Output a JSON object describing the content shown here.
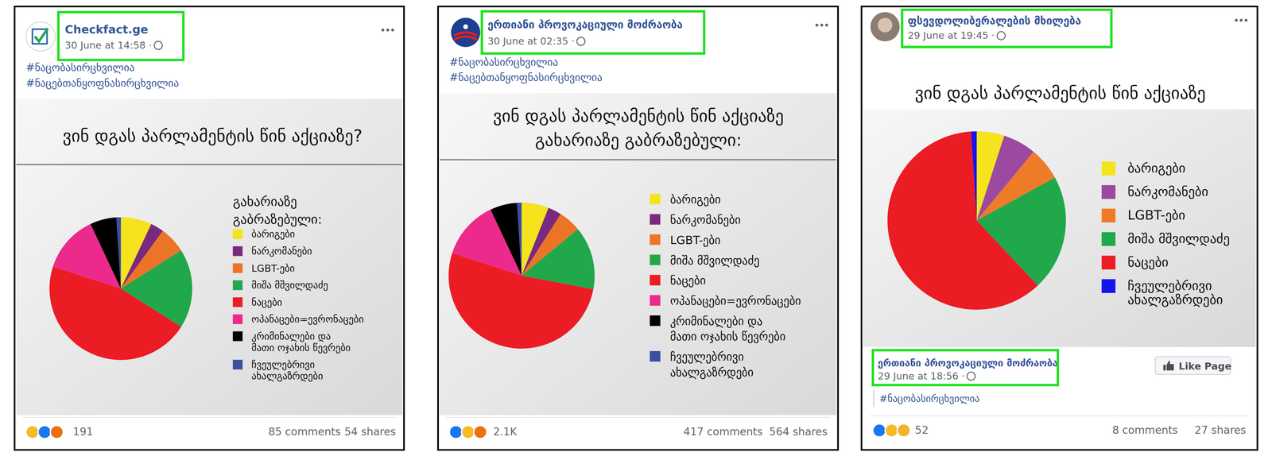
{
  "posts": [
    {
      "page": "Checkfact.ge",
      "time": "30 June at 14:58 ·",
      "hashtags": [
        "#ნაცობასირცხვილია",
        "#ნაცებთანყოფნასირცხვილია"
      ],
      "reactions": "191",
      "comments": "85 comments",
      "shares": "54 shares"
    },
    {
      "page": "ერთიანი პროვოკაციული მოძრაობა",
      "time": "30 June at 02:35 ·",
      "hashtags": [
        "#ნაცობასირცხვილია",
        "#ნაცებთანყოფნასირცხვილია"
      ],
      "reactions": "2.1K",
      "comments": "417 comments",
      "shares": "564 shares"
    },
    {
      "page": "ფსევდოლიბერალების მხილება",
      "time": "29 June at 19:45 ·",
      "shared": {
        "page": "ერთიანი პროვოკაციული მოძრაობა",
        "time": "29 June at 18:56 ·",
        "hashtags": [
          "#ნაცობასირცხვილია"
        ],
        "button": "Like Page"
      },
      "reactions": "52",
      "comments": "8 comments",
      "shares": "27 shares"
    }
  ],
  "chart_data": [
    {
      "type": "pie",
      "title": "ვინ დგას პარლამენტის წინ აქციაზე?",
      "subtitle": "გახარიაზე\nგაბრაზებული:",
      "categories": [
        "ბარიგები",
        "ნარკომანები",
        "LGBT-ები",
        "მიშა მშვილდაძე",
        "ნაცები",
        "ოპანაცები=ევრონაცები",
        "კრიმინალები და\nმათი ოჯახის წევრები",
        "ჩვეულებრივი\nახალგაზრდები"
      ],
      "values": [
        7,
        3,
        6,
        18,
        46,
        13,
        6,
        1
      ],
      "colors": [
        "#f4e31d",
        "#7a2a7e",
        "#ec7427",
        "#21a84a",
        "#ec1c24",
        "#ec2a8b",
        "#000000",
        "#3b4e9f"
      ],
      "legend": "right"
    },
    {
      "type": "pie",
      "title": "ვინ დგას პარლამენტის წინ აქციაზე\nგახარიაზე გაბრაზებული:",
      "categories": [
        "ბარიგები",
        "ნარკომანები",
        "LGBT-ები",
        "მიშა მშვილდაძე",
        "ნაცები",
        "ოპანაცები=ევრონაცები",
        "კრიმინალები და\nმათი ოჯახის წევრები",
        "ჩვეულებრივი\nახალგაზრდები"
      ],
      "values": [
        6,
        3,
        5,
        14,
        52,
        13,
        6,
        1
      ],
      "colors": [
        "#f4e31d",
        "#7a2a7e",
        "#ec7427",
        "#21a84a",
        "#ec1c24",
        "#ec2a8b",
        "#000000",
        "#3b4e9f"
      ],
      "legend": "right"
    },
    {
      "type": "pie",
      "title": "ვინ დგას პარლამენტის წინ აქციაზე",
      "categories": [
        "ბარიგები",
        "ნარკომანები",
        "LGBT-ები",
        "მიშა მშვილდაძე",
        "ნაცები",
        "ჩვეულებრივი\nახალგაზრდები"
      ],
      "values": [
        5,
        6,
        6,
        21,
        61,
        1
      ],
      "colors": [
        "#f4e31d",
        "#9b4aa0",
        "#ef7b28",
        "#21a84a",
        "#ec1c24",
        "#1414f0"
      ],
      "legend": "right"
    }
  ]
}
